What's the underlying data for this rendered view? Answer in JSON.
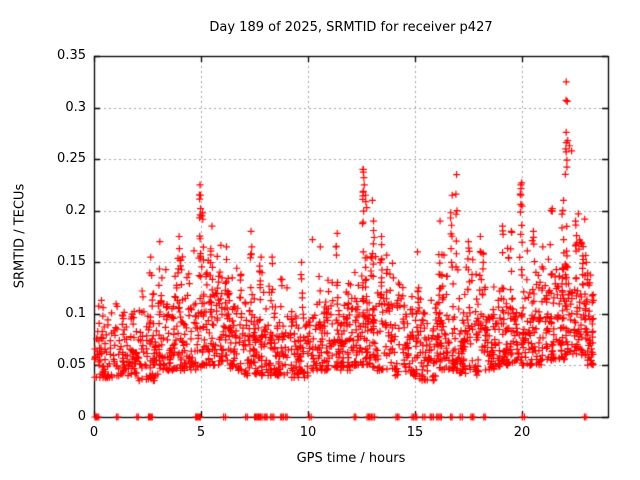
{
  "figure": {
    "background": "#ffffff"
  },
  "chart_data": {
    "type": "scatter",
    "title": "Day 189 of 2025, SRMTID for receiver p427",
    "xlabel": "GPS time / hours",
    "ylabel": "SRMTID / TECUs",
    "xlim": [
      0,
      24
    ],
    "ylim": [
      0,
      0.35
    ],
    "xticks": {
      "values": [
        0,
        5,
        10,
        15,
        20
      ],
      "labels": [
        "0",
        "5",
        "10",
        "15",
        "20"
      ]
    },
    "yticks": {
      "values": [
        0,
        0.05,
        0.1,
        0.15,
        0.2,
        0.25,
        0.3,
        0.35
      ],
      "labels": [
        "0",
        "0.05",
        "0.1",
        "0.15",
        "0.2",
        "0.25",
        "0.3",
        "0.35"
      ]
    },
    "grid": {
      "show": true,
      "color": "#a6a6a6",
      "dash": [
        2,
        3
      ]
    },
    "frame_color": "#000000",
    "text_color": "#000000",
    "legend": null,
    "marker": {
      "shape": "plus",
      "color": "#ff0000",
      "size": 7,
      "stroke": 1.2
    },
    "seed": 189,
    "scatter": {
      "bands": [
        [
          0,
          1,
          70,
          0.038,
          0.115
        ],
        [
          1,
          1,
          78,
          0.04,
          0.125
        ],
        [
          2,
          1,
          72,
          0.035,
          0.135
        ],
        [
          3,
          1,
          82,
          0.045,
          0.16
        ],
        [
          4,
          1,
          82,
          0.045,
          0.175
        ],
        [
          5,
          1,
          92,
          0.05,
          0.185
        ],
        [
          6,
          1,
          82,
          0.045,
          0.155
        ],
        [
          7,
          1,
          88,
          0.04,
          0.165
        ],
        [
          8,
          1,
          82,
          0.04,
          0.14
        ],
        [
          9,
          1,
          76,
          0.038,
          0.135
        ],
        [
          10,
          1,
          78,
          0.045,
          0.15
        ],
        [
          11,
          1,
          82,
          0.045,
          0.155
        ],
        [
          12,
          1,
          88,
          0.05,
          0.185
        ],
        [
          13,
          1,
          82,
          0.045,
          0.175
        ],
        [
          14,
          1,
          74,
          0.04,
          0.14
        ],
        [
          15,
          1,
          78,
          0.035,
          0.15
        ],
        [
          16,
          1,
          88,
          0.045,
          0.175
        ],
        [
          17,
          1,
          84,
          0.04,
          0.165
        ],
        [
          18,
          1,
          84,
          0.045,
          0.165
        ],
        [
          19,
          1,
          88,
          0.05,
          0.18
        ],
        [
          20,
          1,
          88,
          0.05,
          0.185
        ],
        [
          21,
          1,
          90,
          0.055,
          0.185
        ],
        [
          22,
          1,
          95,
          0.06,
          0.2
        ],
        [
          23,
          0.35,
          45,
          0.05,
          0.16
        ]
      ],
      "columns": [
        [
          2.65,
          0.09,
          0.155,
          6
        ],
        [
          3.05,
          0.09,
          0.17,
          7
        ],
        [
          3.95,
          0.1,
          0.175,
          7
        ],
        [
          4.95,
          0.1,
          0.225,
          13
        ],
        [
          5.08,
          0.08,
          0.198,
          10
        ],
        [
          5.5,
          0.09,
          0.185,
          9
        ],
        [
          6.2,
          0.08,
          0.165,
          7
        ],
        [
          7.35,
          0.09,
          0.18,
          9
        ],
        [
          7.8,
          0.06,
          0.155,
          7
        ],
        [
          8.3,
          0.07,
          0.155,
          7
        ],
        [
          9.7,
          0.07,
          0.15,
          6
        ],
        [
          10.55,
          0.08,
          0.165,
          7
        ],
        [
          11.35,
          0.09,
          0.178,
          8
        ],
        [
          12.55,
          0.1,
          0.24,
          14
        ],
        [
          12.7,
          0.08,
          0.215,
          10
        ],
        [
          13.05,
          0.08,
          0.19,
          8
        ],
        [
          13.4,
          0.08,
          0.175,
          7
        ],
        [
          15.1,
          0.07,
          0.16,
          6
        ],
        [
          16.15,
          0.09,
          0.19,
          8
        ],
        [
          16.7,
          0.1,
          0.215,
          9
        ],
        [
          16.95,
          0.11,
          0.2,
          6
        ],
        [
          17.5,
          0.08,
          0.17,
          7
        ],
        [
          18.05,
          0.08,
          0.175,
          7
        ],
        [
          19.1,
          0.09,
          0.185,
          8
        ],
        [
          19.5,
          0.09,
          0.18,
          7
        ],
        [
          19.95,
          0.1,
          0.225,
          11
        ],
        [
          20.5,
          0.08,
          0.18,
          7
        ],
        [
          21.35,
          0.09,
          0.2,
          8
        ],
        [
          21.9,
          0.1,
          0.21,
          9
        ],
        [
          22.05,
          0.1,
          0.26,
          15
        ],
        [
          22.5,
          0.1,
          0.19,
          9
        ],
        [
          23.0,
          0.07,
          0.15,
          5
        ]
      ],
      "outliers": [
        [
          22.05,
          0.325
        ],
        [
          22.04,
          0.307
        ],
        [
          22.1,
          0.306
        ],
        [
          22.05,
          0.276
        ],
        [
          22.12,
          0.268
        ],
        [
          22.05,
          0.266
        ],
        [
          22.2,
          0.263
        ],
        [
          22.05,
          0.257
        ],
        [
          22.08,
          0.249
        ],
        [
          22.3,
          0.258
        ],
        [
          12.58,
          0.24
        ],
        [
          12.6,
          0.232
        ],
        [
          12.62,
          0.225
        ],
        [
          12.56,
          0.218
        ],
        [
          4.95,
          0.225
        ],
        [
          4.97,
          0.215
        ],
        [
          16.93,
          0.235
        ],
        [
          16.9,
          0.216
        ],
        [
          19.97,
          0.227
        ],
        [
          13.0,
          0.21
        ],
        [
          10.2,
          0.172
        ],
        [
          21.4,
          0.202
        ],
        [
          0.35,
          0.113
        ]
      ],
      "zero_points": [
        0.05,
        0.1,
        0.15,
        0.22,
        1.05,
        1.12,
        2.0,
        2.07,
        2.55,
        2.6,
        2.66,
        2.72,
        4.75,
        4.8,
        4.86,
        4.92,
        4.97,
        6.05,
        6.14,
        7.08,
        7.16,
        7.5,
        7.55,
        7.61,
        7.67,
        7.72,
        7.78,
        7.85,
        7.95,
        8.02,
        8.08,
        8.25,
        8.32,
        8.4,
        8.72,
        8.78,
        8.85,
        8.95,
        9.02,
        10.05,
        10.14,
        12.15,
        12.22,
        12.75,
        12.82,
        12.88,
        12.95,
        13.02,
        13.1,
        14.1,
        14.17,
        14.24,
        14.85,
        14.92,
        15.0,
        15.07,
        15.35,
        15.45,
        15.7,
        15.77,
        15.85,
        16.0,
        16.07,
        16.15,
        16.22,
        16.65,
        16.72,
        17.1,
        17.2,
        17.6,
        17.67,
        17.74,
        18.2,
        18.27,
        20.0,
        20.1,
        22.9,
        22.97
      ]
    }
  }
}
